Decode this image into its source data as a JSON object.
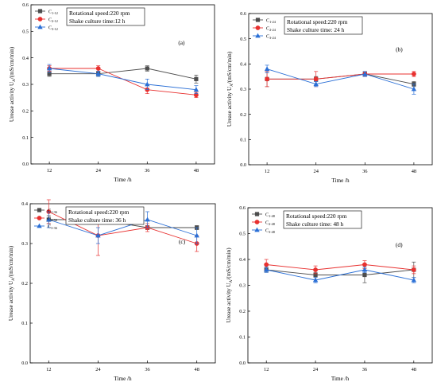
{
  "colors": {
    "C1": "#4d4d4d",
    "C2": "#e8302f",
    "C3": "#2a6fd6",
    "axis": "#000000"
  },
  "chart_data": [
    {
      "type": "line",
      "panel_label": "(a)",
      "xlabel": "Time /h",
      "ylabel": "Urease activity U",
      "ylabel_sub": "A",
      "ylabel_unit": "/(mS/cm/min)",
      "categories": [
        12,
        24,
        36,
        48
      ],
      "ylim": [
        0,
        0.6
      ],
      "yticks": [
        "0.0",
        "0.1",
        "0.2",
        "0.3",
        "0.4",
        "0.5",
        "0.6"
      ],
      "annotation": [
        "Rotational speed:220 rpm",
        "Shake culture time:12 h"
      ],
      "legend_position": "top-left",
      "series": [
        {
          "name": "C",
          "name_sub": "1-12",
          "color_key": "C1",
          "marker": "square",
          "values": [
            0.34,
            0.34,
            0.36,
            0.32
          ],
          "errors": [
            0.01,
            0.01,
            0.01,
            0.015
          ]
        },
        {
          "name": "C",
          "name_sub": "2-12",
          "color_key": "C2",
          "marker": "circle",
          "values": [
            0.36,
            0.36,
            0.28,
            0.26
          ],
          "errors": [
            0.01,
            0.01,
            0.015,
            0.01
          ]
        },
        {
          "name": "C",
          "name_sub": "3-12",
          "color_key": "C3",
          "marker": "triangle",
          "values": [
            0.36,
            0.34,
            0.3,
            0.28
          ],
          "errors": [
            0.015,
            0.01,
            0.02,
            0.015
          ]
        }
      ]
    },
    {
      "type": "line",
      "panel_label": "(b)",
      "xlabel": "Time /h",
      "ylabel": "Urease activity U",
      "ylabel_sub": "A",
      "ylabel_unit": "/(mS/cm/min)",
      "categories": [
        12,
        24,
        36,
        48
      ],
      "ylim": [
        0,
        0.6
      ],
      "yticks": [
        "0.0",
        "0.1",
        "0.2",
        "0.3",
        "0.4",
        "0.5",
        "0.6"
      ],
      "annotation": [
        "Rotational speed:220 rpm",
        "Shake culture time: 24 h"
      ],
      "legend_position": "top-left",
      "series": [
        {
          "name": "C",
          "name_sub": "1-24",
          "color_key": "C1",
          "marker": "square",
          "values": [
            0.34,
            0.34,
            0.36,
            0.32
          ],
          "errors": [
            0.03,
            0.01,
            0.01,
            0.01
          ]
        },
        {
          "name": "C",
          "name_sub": "2-24",
          "color_key": "C2",
          "marker": "circle",
          "values": [
            0.34,
            0.34,
            0.36,
            0.36
          ],
          "errors": [
            0.03,
            0.03,
            0.01,
            0.01
          ]
        },
        {
          "name": "C",
          "name_sub": "3-24",
          "color_key": "C3",
          "marker": "triangle",
          "values": [
            0.38,
            0.32,
            0.36,
            0.3
          ],
          "errors": [
            0.015,
            0.01,
            0.01,
            0.02
          ]
        }
      ]
    },
    {
      "type": "line",
      "panel_label": "(c)",
      "xlabel": "Time /h",
      "ylabel": "Urease activity U",
      "ylabel_sub": "A",
      "ylabel_unit": "/(mS/cm/min)",
      "categories": [
        12,
        24,
        36,
        48
      ],
      "ylim": [
        0,
        0.4
      ],
      "yticks": [
        "0.0",
        "0.1",
        "0.2",
        "0.3",
        "0.4"
      ],
      "annotation": [
        "Rotational speed:220 rpm",
        "Shake culture time: 36 h"
      ],
      "legend_position": "top-left",
      "series": [
        {
          "name": "C",
          "name_sub": "1-36",
          "color_key": "C1",
          "marker": "square",
          "values": [
            0.36,
            0.36,
            0.34,
            0.34
          ],
          "errors": [
            0.01,
            0.005,
            0.005,
            0.005
          ]
        },
        {
          "name": "C",
          "name_sub": "2-36",
          "color_key": "C2",
          "marker": "circle",
          "values": [
            0.38,
            0.32,
            0.34,
            0.3
          ],
          "errors": [
            0.03,
            0.05,
            0.01,
            0.02
          ]
        },
        {
          "name": "C",
          "name_sub": "3-36",
          "color_key": "C3",
          "marker": "triangle",
          "values": [
            0.36,
            0.32,
            0.36,
            0.32
          ],
          "errors": [
            0.02,
            0.02,
            0.02,
            0.02
          ]
        }
      ]
    },
    {
      "type": "line",
      "panel_label": "(d)",
      "xlabel": "Time /h",
      "ylabel": "Urease activity U",
      "ylabel_sub": "A",
      "ylabel_unit": "/(mS/cm/min)",
      "categories": [
        12,
        24,
        36,
        48
      ],
      "ylim": [
        0,
        0.6
      ],
      "yticks": [
        "0.0",
        "0.1",
        "0.2",
        "0.3",
        "0.4",
        "0.5",
        "0.6"
      ],
      "annotation": [
        "Rotational speed:220 rpm",
        "Shake culture time: 48 h"
      ],
      "legend_position": "top-left",
      "series": [
        {
          "name": "C",
          "name_sub": "1-48",
          "color_key": "C1",
          "marker": "square",
          "values": [
            0.36,
            0.34,
            0.34,
            0.36
          ],
          "errors": [
            0.01,
            0.01,
            0.03,
            0.03
          ]
        },
        {
          "name": "C",
          "name_sub": "2-48",
          "color_key": "C2",
          "marker": "circle",
          "values": [
            0.38,
            0.36,
            0.38,
            0.36
          ],
          "errors": [
            0.02,
            0.015,
            0.015,
            0.015
          ]
        },
        {
          "name": "C",
          "name_sub": "3-48",
          "color_key": "C3",
          "marker": "triangle",
          "values": [
            0.36,
            0.32,
            0.36,
            0.32
          ],
          "errors": [
            0.01,
            0.01,
            0.01,
            0.01
          ]
        }
      ]
    }
  ]
}
